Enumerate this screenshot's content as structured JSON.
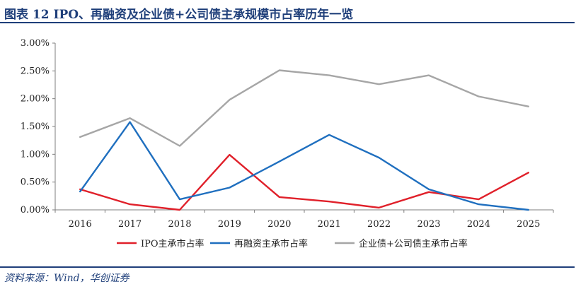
{
  "figure": {
    "title": "图表 12   IPO、再融资及企业债+公司债主承规模市占率历年一览",
    "source": "资料来源：Wind，华创证券"
  },
  "chart_data": {
    "type": "line",
    "x": [
      "2016",
      "2017",
      "2018",
      "2019",
      "2020",
      "2021",
      "2022",
      "2023",
      "2024",
      "2025"
    ],
    "ylim": [
      0,
      3.0
    ],
    "yticks": [
      "0.00%",
      "0.50%",
      "1.00%",
      "1.50%",
      "2.00%",
      "2.50%",
      "3.00%"
    ],
    "grid": false,
    "legend_position": "bottom",
    "series": [
      {
        "name": "IPO主承市占率",
        "color": "#e0202a",
        "values": [
          0.37,
          0.1,
          0.0,
          0.99,
          0.23,
          0.15,
          0.04,
          0.32,
          0.19,
          0.67
        ]
      },
      {
        "name": "再融资主承市占率",
        "color": "#1f6fbf",
        "values": [
          0.33,
          1.58,
          0.19,
          0.4,
          0.87,
          1.35,
          0.94,
          0.37,
          0.1,
          0.0
        ]
      },
      {
        "name": "企业债+公司债主承市占率",
        "color": "#a6a6a6",
        "values": [
          1.31,
          1.65,
          1.15,
          1.98,
          2.51,
          2.42,
          2.26,
          2.42,
          2.04,
          1.86
        ]
      }
    ]
  }
}
